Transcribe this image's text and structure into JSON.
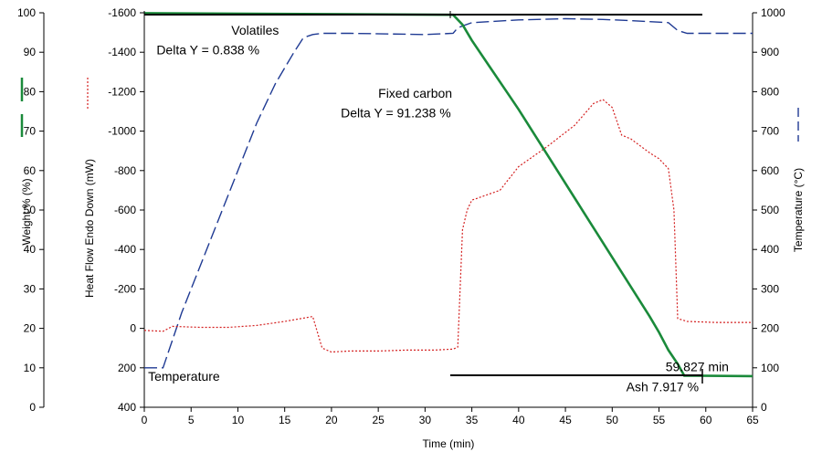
{
  "chart_data": {
    "type": "line",
    "x": {
      "label": "Time (min)",
      "range": [
        0,
        65
      ],
      "ticks": [
        "0",
        "5",
        "10",
        "15",
        "20",
        "25",
        "30",
        "35",
        "40",
        "45",
        "50",
        "55",
        "60",
        "65"
      ]
    },
    "axes": {
      "weight": {
        "label": "Weight % (%)",
        "range": [
          0,
          100
        ],
        "ticks": [
          "0",
          "10",
          "20",
          "30",
          "40",
          "50",
          "60",
          "70",
          "80",
          "90",
          "100"
        ]
      },
      "heatflow": {
        "label": "Heat Flow Endo Down (mW)",
        "range": [
          400,
          -1600
        ],
        "ticks": [
          "400",
          "200",
          "0",
          "-200",
          "-400",
          "-600",
          "-800",
          "-1000",
          "-1200",
          "-1400",
          "-1600"
        ]
      },
      "temperature": {
        "label": "Temperature (°C)",
        "range": [
          0,
          1000
        ],
        "ticks": [
          "0",
          "100",
          "200",
          "300",
          "400",
          "500",
          "600",
          "700",
          "800",
          "900",
          "1000"
        ]
      }
    },
    "series": [
      {
        "name": "Weight",
        "axis": "weight",
        "color": "#1a8a3a",
        "style": "solid",
        "points": [
          [
            0,
            99.9
          ],
          [
            33,
            99.5
          ],
          [
            34,
            97
          ],
          [
            35,
            93
          ],
          [
            37,
            86
          ],
          [
            39,
            79
          ],
          [
            40,
            75.5
          ],
          [
            42,
            68
          ],
          [
            44,
            60.5
          ],
          [
            46,
            53
          ],
          [
            48,
            45.5
          ],
          [
            50,
            38
          ],
          [
            52,
            30.5
          ],
          [
            54,
            23
          ],
          [
            55,
            19
          ],
          [
            56,
            14.5
          ],
          [
            57,
            11
          ],
          [
            57.7,
            8
          ],
          [
            65,
            7.9
          ]
        ]
      },
      {
        "name": "Heat Flow",
        "axis": "heatflow",
        "color": "#d42020",
        "style": "dotted",
        "points": [
          [
            0,
            10
          ],
          [
            2,
            15
          ],
          [
            3,
            -10
          ],
          [
            6,
            -5
          ],
          [
            9,
            -5
          ],
          [
            12,
            -15
          ],
          [
            15,
            -35
          ],
          [
            18,
            -60
          ],
          [
            19,
            100
          ],
          [
            20,
            120
          ],
          [
            22,
            115
          ],
          [
            25,
            115
          ],
          [
            28,
            110
          ],
          [
            31,
            110
          ],
          [
            33,
            105
          ],
          [
            33.5,
            95
          ],
          [
            34,
            -500
          ],
          [
            34.5,
            -600
          ],
          [
            35,
            -650
          ],
          [
            38,
            -700
          ],
          [
            40,
            -820
          ],
          [
            43,
            -920
          ],
          [
            46,
            -1030
          ],
          [
            48,
            -1140
          ],
          [
            49,
            -1160
          ],
          [
            50,
            -1120
          ],
          [
            51,
            -980
          ],
          [
            52,
            -960
          ],
          [
            54,
            -890
          ],
          [
            55,
            -860
          ],
          [
            56,
            -810
          ],
          [
            56.6,
            -600
          ],
          [
            57,
            -50
          ],
          [
            58,
            -35
          ],
          [
            61,
            -30
          ],
          [
            65,
            -30
          ]
        ]
      },
      {
        "name": "Temperature",
        "axis": "temperature",
        "color": "#1f3a93",
        "style": "dashed",
        "points": [
          [
            0,
            100
          ],
          [
            2,
            100
          ],
          [
            4,
            240
          ],
          [
            6,
            360
          ],
          [
            8,
            480
          ],
          [
            10,
            600
          ],
          [
            12,
            720
          ],
          [
            14,
            820
          ],
          [
            16,
            900
          ],
          [
            17,
            937
          ],
          [
            18,
            945
          ],
          [
            19,
            948
          ],
          [
            22,
            948
          ],
          [
            30,
            945
          ],
          [
            33,
            948
          ],
          [
            33.5,
            962
          ],
          [
            35,
            975
          ],
          [
            40,
            982
          ],
          [
            45,
            985
          ],
          [
            49,
            983
          ],
          [
            52,
            980
          ],
          [
            56,
            975
          ],
          [
            57,
            955
          ],
          [
            58,
            948
          ],
          [
            65,
            948
          ]
        ]
      }
    ],
    "annotations": [
      {
        "text": "Volatiles",
        "x": 9.3,
        "y_weight": 94.5
      },
      {
        "text": "Delta Y = 0.838 %",
        "x": 1.3,
        "y_weight": 89.5
      },
      {
        "text": "Fixed carbon",
        "x": 25,
        "y_weight": 78.5
      },
      {
        "text": "Delta Y = 91.238 %",
        "x": 21,
        "y_weight": 73.5
      },
      {
        "text": "59.827 min",
        "x": 55.7,
        "y_weight": 9.2
      },
      {
        "text": "Ash  7.917 %",
        "x": 51.5,
        "y_weight": 4
      },
      {
        "text": "Temperature",
        "x": 0.4,
        "y_weight": 6.7,
        "color": "#1f3a93"
      }
    ]
  }
}
